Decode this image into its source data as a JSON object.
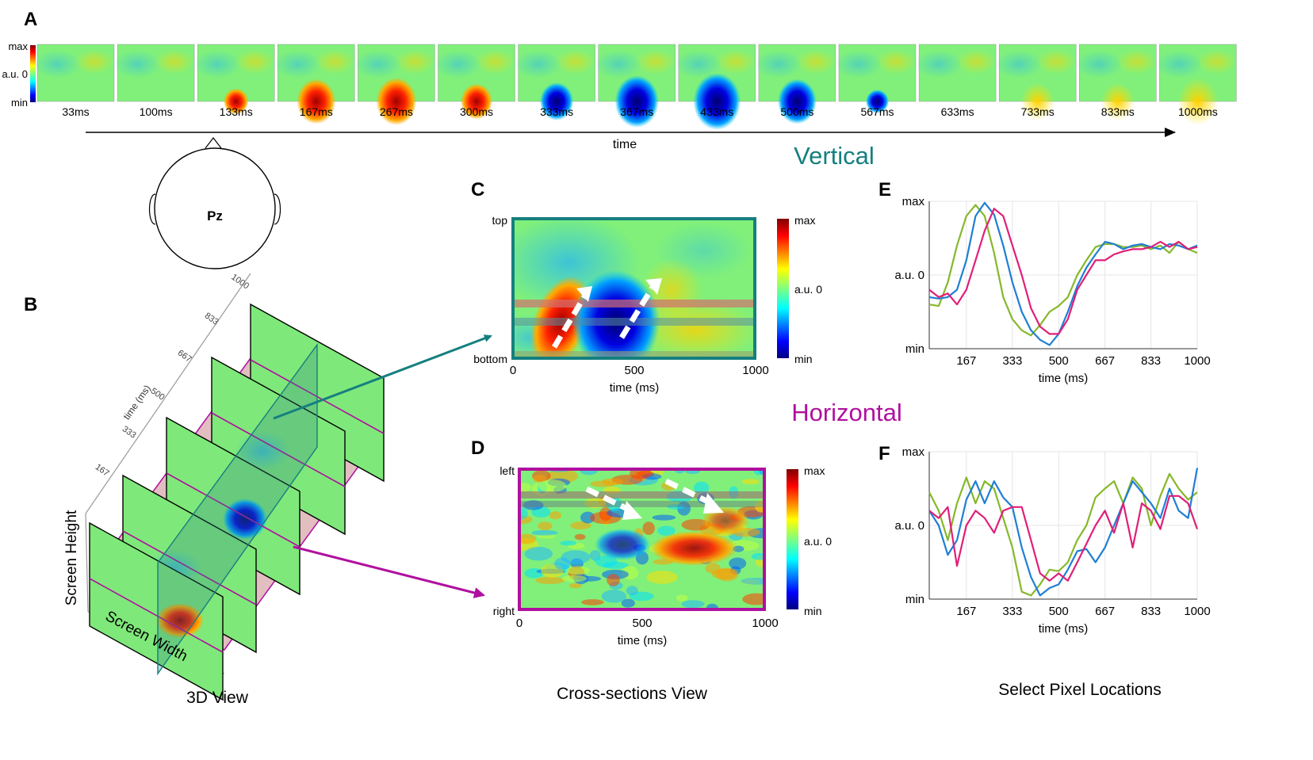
{
  "panel_labels": {
    "a": "A",
    "b": "B",
    "c": "C",
    "d": "D",
    "e": "E",
    "f": "F"
  },
  "strip": {
    "colorbar": {
      "max": "max",
      "zero": "a.u. 0",
      "min": "min"
    },
    "frames": [
      "33ms",
      "100ms",
      "133ms",
      "167ms",
      "267ms",
      "300ms",
      "333ms",
      "367ms",
      "433ms",
      "500ms",
      "567ms",
      "633ms",
      "733ms",
      "833ms",
      "1000ms"
    ],
    "time_label": "time"
  },
  "head": {
    "electrode": "Pz"
  },
  "section_titles": {
    "vertical": "Vertical",
    "horizontal": "Horizontal"
  },
  "colors": {
    "vertical": "#157f7f",
    "horizontal": "#b0109f",
    "green": "#86b82a",
    "blue": "#1f7fd4",
    "magenta": "#e01f78"
  },
  "view3d": {
    "time_axis_label": "time (ms)",
    "time_ticks": [
      "167",
      "333",
      "500",
      "667",
      "833",
      "1000"
    ],
    "height_label": "Screen Height",
    "width_label": "Screen Width",
    "caption": "3D View"
  },
  "panel_c": {
    "y_top": "top",
    "y_bottom": "bottom",
    "x_ticks": [
      "0",
      "500",
      "1000"
    ],
    "xlabel": "time (ms)",
    "cb": {
      "max": "max",
      "zero": "a.u. 0",
      "min": "min"
    }
  },
  "panel_d": {
    "y_top": "left",
    "y_bottom": "right",
    "x_ticks": [
      "0",
      "500",
      "1000"
    ],
    "xlabel": "time (ms)",
    "cb": {
      "max": "max",
      "zero": "a.u. 0",
      "min": "min"
    }
  },
  "cross_caption": "Cross-sections View",
  "select_caption": "Select Pixel Locations",
  "chart_data": [
    {
      "id": "E",
      "type": "line",
      "x": [
        33,
        67,
        100,
        133,
        167,
        200,
        233,
        267,
        300,
        333,
        367,
        400,
        433,
        467,
        500,
        533,
        567,
        600,
        633,
        667,
        700,
        733,
        767,
        800,
        833,
        867,
        900,
        933,
        967,
        1000
      ],
      "xticks": [
        "167",
        "333",
        "500",
        "667",
        "833",
        "1000"
      ],
      "yticks": [
        "max",
        "a.u. 0",
        "min"
      ],
      "xlabel": "time (ms)",
      "xlim": [
        33,
        1000
      ],
      "ylim": [
        -1,
        1
      ],
      "series": [
        {
          "color": "green",
          "values": [
            -0.4,
            -0.42,
            -0.1,
            0.4,
            0.8,
            0.95,
            0.8,
            0.3,
            -0.3,
            -0.6,
            -0.75,
            -0.82,
            -0.68,
            -0.5,
            -0.42,
            -0.3,
            0.0,
            0.2,
            0.38,
            0.42,
            0.42,
            0.38,
            0.38,
            0.4,
            0.35,
            0.4,
            0.3,
            0.45,
            0.35,
            0.3
          ]
        },
        {
          "color": "blue",
          "values": [
            -0.3,
            -0.32,
            -0.3,
            -0.2,
            0.2,
            0.8,
            0.98,
            0.82,
            0.4,
            -0.1,
            -0.5,
            -0.75,
            -0.88,
            -0.95,
            -0.8,
            -0.5,
            -0.15,
            0.1,
            0.28,
            0.45,
            0.42,
            0.35,
            0.4,
            0.42,
            0.38,
            0.35,
            0.42,
            0.4,
            0.35,
            0.4
          ]
        },
        {
          "color": "magenta",
          "values": [
            -0.2,
            -0.3,
            -0.25,
            -0.4,
            -0.2,
            0.2,
            0.6,
            0.9,
            0.8,
            0.4,
            0.0,
            -0.45,
            -0.7,
            -0.8,
            -0.8,
            -0.6,
            -0.2,
            0.0,
            0.2,
            0.2,
            0.28,
            0.32,
            0.35,
            0.35,
            0.38,
            0.45,
            0.38,
            0.45,
            0.35,
            0.38
          ]
        }
      ]
    },
    {
      "id": "F",
      "type": "line",
      "x": [
        33,
        67,
        100,
        133,
        167,
        200,
        233,
        267,
        300,
        333,
        367,
        400,
        433,
        467,
        500,
        533,
        567,
        600,
        633,
        667,
        700,
        733,
        767,
        800,
        833,
        867,
        900,
        933,
        967,
        1000
      ],
      "xticks": [
        "167",
        "333",
        "500",
        "667",
        "833",
        "1000"
      ],
      "yticks": [
        "max",
        "a.u. 0",
        "min"
      ],
      "xlabel": "time (ms)",
      "xlim": [
        33,
        1000
      ],
      "ylim": [
        -1,
        1
      ],
      "series": [
        {
          "color": "green",
          "values": [
            0.45,
            0.2,
            -0.2,
            0.3,
            0.65,
            0.3,
            0.6,
            0.5,
            0.1,
            -0.3,
            -0.9,
            -0.95,
            -0.8,
            -0.6,
            -0.62,
            -0.5,
            -0.2,
            0.0,
            0.38,
            0.5,
            0.6,
            0.3,
            0.65,
            0.5,
            0.0,
            0.4,
            0.7,
            0.5,
            0.35,
            0.45
          ]
        },
        {
          "color": "blue",
          "values": [
            0.2,
            0.0,
            -0.4,
            -0.2,
            0.35,
            0.6,
            0.3,
            0.6,
            0.38,
            0.25,
            -0.3,
            -0.7,
            -0.95,
            -0.85,
            -0.8,
            -0.6,
            -0.35,
            -0.32,
            -0.5,
            -0.3,
            0.0,
            0.3,
            0.6,
            0.45,
            0.3,
            0.1,
            0.5,
            0.2,
            0.1,
            0.78
          ]
        },
        {
          "color": "magenta",
          "values": [
            0.2,
            0.1,
            0.25,
            -0.55,
            0.0,
            0.2,
            0.1,
            -0.1,
            0.2,
            0.25,
            0.25,
            -0.2,
            -0.65,
            -0.75,
            -0.65,
            -0.75,
            -0.5,
            -0.25,
            0.0,
            0.2,
            -0.1,
            0.3,
            -0.3,
            0.3,
            0.2,
            -0.05,
            0.4,
            0.4,
            0.3,
            -0.05
          ]
        }
      ]
    }
  ]
}
